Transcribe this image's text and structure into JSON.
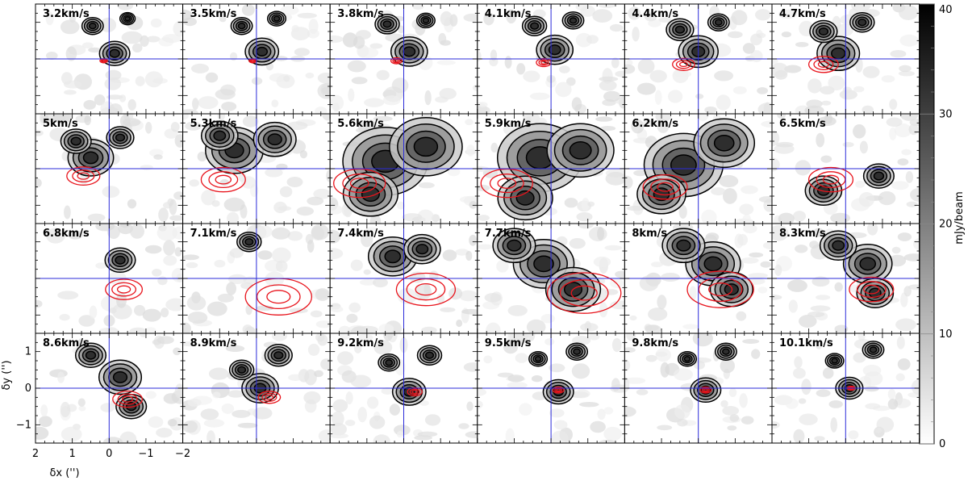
{
  "chart_data": {
    "type": "heatmap",
    "title": "",
    "layout": {
      "rows": 4,
      "cols": 6
    },
    "panels": [
      {
        "label": "3.2km/s",
        "v": 3.2,
        "emission": [
          [
            -0.15,
            0.15,
            0.5
          ],
          [
            0.45,
            0.9,
            0.35
          ],
          [
            -0.5,
            1.1,
            0.25
          ]
        ],
        "red": [
          [
            0.15,
            -0.05,
            0.1
          ]
        ]
      },
      {
        "label": "3.5km/s",
        "v": 3.5,
        "emission": [
          [
            -0.15,
            0.2,
            0.55
          ],
          [
            0.4,
            0.9,
            0.35
          ],
          [
            -0.55,
            1.1,
            0.3
          ]
        ],
        "red": [
          [
            0.1,
            -0.05,
            0.1
          ]
        ]
      },
      {
        "label": "3.8km/s",
        "v": 3.8,
        "emission": [
          [
            -0.15,
            0.2,
            0.6
          ],
          [
            0.45,
            0.95,
            0.4
          ],
          [
            -0.6,
            1.05,
            0.3
          ]
        ],
        "red": [
          [
            0.2,
            -0.05,
            0.15
          ]
        ]
      },
      {
        "label": "4.1km/s",
        "v": 4.1,
        "emission": [
          [
            -0.1,
            0.25,
            0.6
          ],
          [
            0.45,
            0.9,
            0.4
          ],
          [
            -0.6,
            1.05,
            0.35
          ]
        ],
        "red": [
          [
            0.2,
            -0.1,
            0.2
          ]
        ]
      },
      {
        "label": "4.4km/s",
        "v": 4.4,
        "emission": [
          [
            0.0,
            0.2,
            0.65
          ],
          [
            0.5,
            0.8,
            0.45
          ],
          [
            -0.55,
            1.0,
            0.35
          ]
        ],
        "red": [
          [
            0.4,
            -0.15,
            0.3
          ]
        ]
      },
      {
        "label": "4.7km/s",
        "v": 4.7,
        "emission": [
          [
            0.2,
            0.15,
            0.7
          ],
          [
            0.6,
            0.75,
            0.45
          ],
          [
            -0.45,
            1.0,
            0.4
          ]
        ],
        "red": [
          [
            0.6,
            -0.15,
            0.4
          ]
        ]
      },
      {
        "label": "5km/s",
        "v": 5.0,
        "emission": [
          [
            0.5,
            0.3,
            0.75
          ],
          [
            0.9,
            0.75,
            0.5
          ],
          [
            -0.3,
            0.85,
            0.45
          ]
        ],
        "red": [
          [
            0.7,
            -0.2,
            0.45
          ]
        ]
      },
      {
        "label": "5.3km/s",
        "v": 5.3,
        "emission": [
          [
            0.6,
            0.5,
            0.95
          ],
          [
            1.0,
            0.9,
            0.6
          ],
          [
            -0.5,
            0.8,
            0.7
          ]
        ],
        "red": [
          [
            0.9,
            -0.3,
            0.6
          ]
        ]
      },
      {
        "label": "5.6km/s",
        "v": 5.6,
        "emission": [
          [
            0.5,
            0.2,
            1.4
          ],
          [
            -0.6,
            0.6,
            1.2
          ],
          [
            0.9,
            -0.7,
            0.9
          ]
        ],
        "red": [
          [
            1.2,
            -0.4,
            0.7
          ]
        ]
      },
      {
        "label": "5.9km/s",
        "v": 5.9,
        "emission": [
          [
            0.3,
            0.3,
            1.4
          ],
          [
            -0.8,
            0.5,
            1.1
          ],
          [
            0.7,
            -0.8,
            0.9
          ]
        ],
        "red": [
          [
            1.2,
            -0.4,
            0.7
          ]
        ]
      },
      {
        "label": "6.2km/s",
        "v": 6.2,
        "emission": [
          [
            0.4,
            0.1,
            1.3
          ],
          [
            -0.7,
            0.7,
            1.0
          ],
          [
            1.0,
            -0.7,
            0.8
          ]
        ],
        "red": [
          [
            0.9,
            -0.5,
            0.6
          ]
        ]
      },
      {
        "label": "6.5km/s",
        "v": 6.5,
        "emission": [
          [
            0.6,
            -0.6,
            0.6
          ],
          [
            -0.9,
            -0.2,
            0.5
          ]
        ],
        "red": [
          [
            0.4,
            -0.3,
            0.6
          ]
        ]
      },
      {
        "label": "6.8km/s",
        "v": 6.8,
        "emission": [
          [
            -0.3,
            0.5,
            0.5
          ]
        ],
        "red": [
          [
            -0.4,
            -0.3,
            0.5
          ]
        ]
      },
      {
        "label": "7.1km/s",
        "v": 7.1,
        "emission": [
          [
            0.2,
            1.0,
            0.4
          ]
        ],
        "red": [
          [
            -0.6,
            -0.5,
            0.9
          ]
        ]
      },
      {
        "label": "7.4km/s",
        "v": 7.4,
        "emission": [
          [
            0.3,
            0.6,
            0.8
          ],
          [
            -0.5,
            0.8,
            0.6
          ]
        ],
        "red": [
          [
            -0.6,
            -0.3,
            0.8
          ]
        ]
      },
      {
        "label": "7.7km/s",
        "v": 7.7,
        "emission": [
          [
            0.2,
            0.4,
            1.0
          ],
          [
            -0.6,
            -0.3,
            0.9
          ],
          [
            1.0,
            0.9,
            0.7
          ]
        ],
        "red": [
          [
            -0.9,
            -0.4,
            1.0
          ]
        ]
      },
      {
        "label": "8km/s",
        "v": 8.0,
        "emission": [
          [
            -0.4,
            0.4,
            0.9
          ],
          [
            -0.9,
            -0.3,
            0.7
          ],
          [
            0.4,
            0.9,
            0.7
          ]
        ],
        "red": [
          [
            -0.6,
            -0.3,
            0.9
          ]
        ]
      },
      {
        "label": "8.3km/s",
        "v": 8.3,
        "emission": [
          [
            -0.6,
            0.4,
            0.8
          ],
          [
            -0.8,
            -0.4,
            0.6
          ],
          [
            0.2,
            0.9,
            0.6
          ]
        ],
        "red": [
          [
            -0.7,
            -0.3,
            0.6
          ]
        ]
      },
      {
        "label": "8.6km/s",
        "v": 8.6,
        "emission": [
          [
            -0.3,
            0.3,
            0.7
          ],
          [
            -0.6,
            -0.5,
            0.5
          ],
          [
            0.5,
            0.9,
            0.5
          ]
        ],
        "red": [
          [
            -0.5,
            -0.3,
            0.4
          ]
        ]
      },
      {
        "label": "8.9km/s",
        "v": 8.9,
        "emission": [
          [
            -0.1,
            0.0,
            0.6
          ],
          [
            -0.6,
            0.9,
            0.45
          ],
          [
            0.4,
            0.5,
            0.4
          ]
        ],
        "red": [
          [
            -0.35,
            -0.25,
            0.3
          ]
        ]
      },
      {
        "label": "9.2km/s",
        "v": 9.2,
        "emission": [
          [
            -0.15,
            -0.1,
            0.55
          ],
          [
            -0.7,
            0.9,
            0.4
          ],
          [
            0.4,
            0.7,
            0.35
          ]
        ],
        "red": [
          [
            -0.3,
            -0.1,
            0.2
          ]
        ]
      },
      {
        "label": "9.5km/s",
        "v": 9.5,
        "emission": [
          [
            -0.2,
            -0.1,
            0.5
          ],
          [
            -0.7,
            1.0,
            0.35
          ],
          [
            0.35,
            0.8,
            0.3
          ]
        ],
        "red": [
          [
            -0.2,
            -0.05,
            0.15
          ]
        ]
      },
      {
        "label": "9.8km/s",
        "v": 9.8,
        "emission": [
          [
            -0.2,
            -0.05,
            0.5
          ],
          [
            -0.75,
            1.0,
            0.35
          ],
          [
            0.3,
            0.8,
            0.3
          ]
        ],
        "red": [
          [
            -0.2,
            -0.05,
            0.15
          ]
        ]
      },
      {
        "label": "10.1km/s",
        "v": 10.1,
        "emission": [
          [
            -0.1,
            0.0,
            0.45
          ],
          [
            -0.75,
            1.05,
            0.35
          ],
          [
            0.3,
            0.75,
            0.3
          ]
        ],
        "red": [
          [
            -0.15,
            0.0,
            0.1
          ]
        ]
      }
    ],
    "x_axis": {
      "label": "δx ('')",
      "range": [
        2,
        -2
      ],
      "ticks": [
        "2",
        "1",
        "0",
        "−1",
        "−2"
      ]
    },
    "y_axis": {
      "label": "δy ('')",
      "range": [
        -1.5,
        1.5
      ],
      "ticks": [
        "−1",
        "0",
        "1"
      ]
    },
    "colorbar": {
      "label": "mJy/beam",
      "range": [
        0,
        40
      ],
      "ticks": [
        "0",
        "10",
        "20",
        "30",
        "40"
      ],
      "colormap": "gray_r"
    },
    "crosshair": {
      "x": 0,
      "y": 0
    },
    "colors": {
      "contour": "#000000",
      "red_contour": "#e8141c",
      "crosshair": "#2b2bd9",
      "frame": "#000000"
    }
  }
}
